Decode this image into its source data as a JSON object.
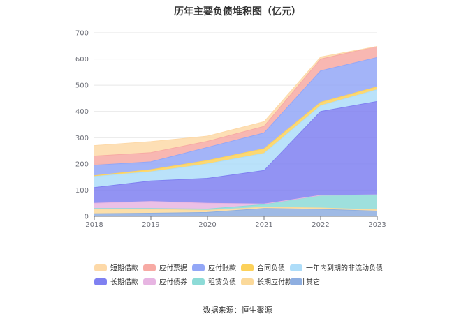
{
  "chart_data": {
    "type": "area",
    "stacked": true,
    "title": "历年主要负债堆积图（亿元）",
    "x": [
      "2018",
      "2019",
      "2020",
      "2021",
      "2022",
      "2023"
    ],
    "ylim": [
      0,
      700
    ],
    "yticks": [
      0,
      100,
      200,
      300,
      400,
      500,
      600,
      700
    ],
    "grid": true,
    "legend_position": "bottom",
    "series": [
      {
        "name": "其它",
        "color": "#8eaee0",
        "values": [
          10,
          12,
          15,
          30,
          27,
          20
        ]
      },
      {
        "name": "长期应付款合计",
        "color": "#fbd99a",
        "values": [
          18,
          15,
          8,
          5,
          5,
          5
        ]
      },
      {
        "name": "租赁负债",
        "color": "#8ddbd7",
        "values": [
          2,
          3,
          5,
          10,
          48,
          57
        ]
      },
      {
        "name": "应付债券",
        "color": "#e7b5e2",
        "values": [
          20,
          27,
          22,
          2,
          0,
          0
        ]
      },
      {
        "name": "长期借款",
        "color": "#7f80f1",
        "values": [
          60,
          78,
          95,
          128,
          320,
          356
        ]
      },
      {
        "name": "一年内到期的非流动负债",
        "color": "#aeddf9",
        "values": [
          42,
          35,
          55,
          65,
          22,
          45
        ]
      },
      {
        "name": "合同负债",
        "color": "#fcd15a",
        "values": [
          3,
          8,
          13,
          18,
          13,
          11
        ]
      },
      {
        "name": "应付账款",
        "color": "#93a7f7",
        "values": [
          40,
          30,
          50,
          60,
          120,
          112
        ]
      },
      {
        "name": "应付票据",
        "color": "#f7aaa4",
        "values": [
          35,
          35,
          23,
          25,
          45,
          42
        ]
      },
      {
        "name": "短期借款",
        "color": "#fdd9a8",
        "values": [
          40,
          42,
          20,
          18,
          8,
          0
        ]
      }
    ],
    "legend_order": [
      "短期借款",
      "应付票据",
      "应付账款",
      "合同负债",
      "一年内到期的非流动负债",
      "长期借款",
      "应付债券",
      "租赁负债",
      "长期应付款合计",
      "其它"
    ],
    "source_text": "数据来源：恒生聚源"
  }
}
